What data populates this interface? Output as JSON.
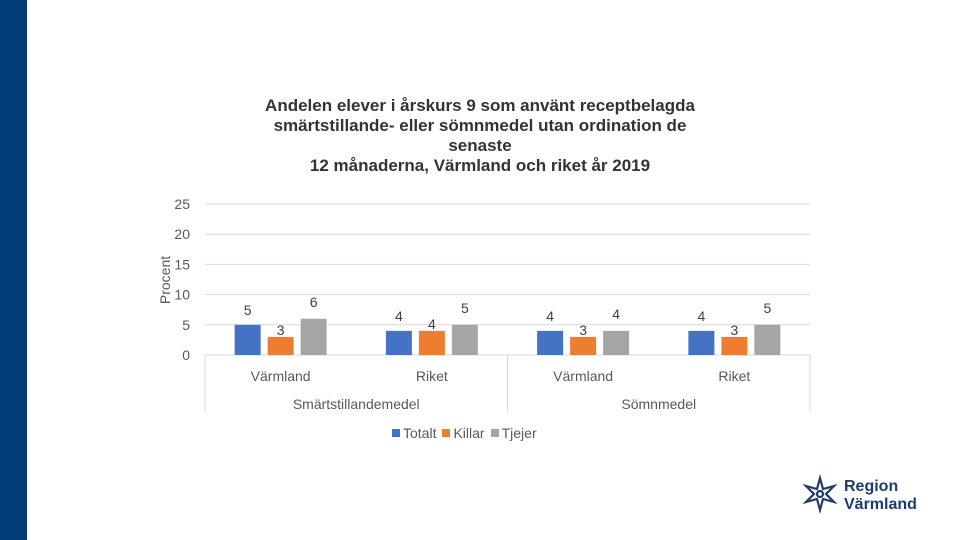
{
  "colors": {
    "sidebar": "#003c78",
    "totalt": "#4472c4",
    "killar": "#ed7d31",
    "tjejer": "#a5a5a5",
    "brand": "#1f3b6e"
  },
  "chart_data": {
    "type": "bar",
    "title_lines": [
      "Andelen elever i årskurs 9 som använt receptbelagda",
      "smärtstillande- eller sömnmedel utan ordination de",
      "senaste",
      "12 månaderna, Värmland och riket år 2019"
    ],
    "ylabel": "Procent",
    "ylim": [
      0,
      25
    ],
    "yticks": [
      "0",
      "5",
      "10",
      "15",
      "20",
      "25"
    ],
    "grid": true,
    "categories": [
      "Värmland",
      "Riket",
      "Värmland",
      "Riket"
    ],
    "groups": [
      "Smärtstillandemedel",
      "Sömnmedel"
    ],
    "series": [
      {
        "name": "Totalt",
        "color_key": "totalt",
        "values": [
          5,
          4,
          4,
          4
        ]
      },
      {
        "name": "Killar",
        "color_key": "killar",
        "values": [
          3,
          4,
          3,
          3
        ]
      },
      {
        "name": "Tjejer",
        "color_key": "tjejer",
        "values": [
          6,
          5,
          4,
          5
        ]
      }
    ],
    "legend_position": "bottom"
  },
  "logo": {
    "line1": "Region",
    "line2": "Värmland",
    "icon": "star-flower-icon"
  }
}
